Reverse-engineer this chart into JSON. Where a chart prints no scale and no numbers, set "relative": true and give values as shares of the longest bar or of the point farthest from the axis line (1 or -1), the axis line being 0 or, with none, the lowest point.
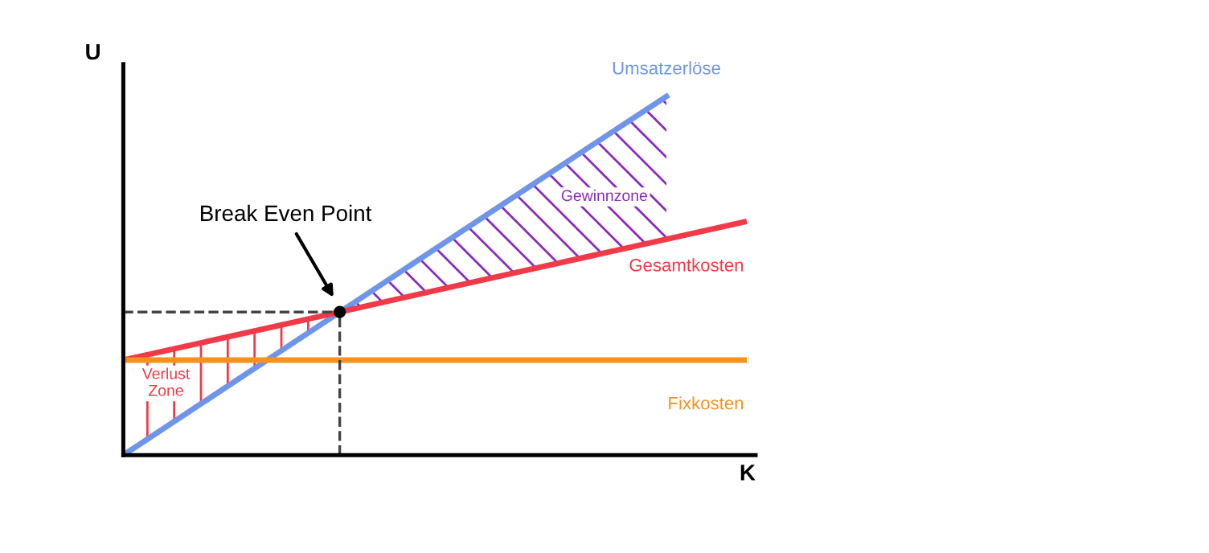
{
  "chart_data": {
    "type": "line",
    "relative": true,
    "xlabel": "K",
    "ylabel": "U",
    "categories": [
      null,
      null,
      null,
      null,
      null,
      null,
      null,
      null,
      null
    ],
    "series": [
      {
        "name": "Umsatzerlöse",
        "color": "#6f95ea",
        "values": [
          0,
          0.143,
          0.286,
          0.429,
          0.572,
          0.715,
          0.858,
          1.0,
          null
        ]
      },
      {
        "name": "Gesamtkosten",
        "color": "#f03a47",
        "values": [
          0.265,
          0.313,
          0.361,
          0.409,
          0.458,
          0.506,
          0.554,
          0.602,
          0.65
        ]
      },
      {
        "name": "Fixkosten",
        "color": "#f5921e",
        "values": [
          0.265,
          0.265,
          0.265,
          0.265,
          0.265,
          0.265,
          0.265,
          0.265,
          0.265
        ]
      }
    ],
    "annotations": [
      "Break Even Point",
      "Gewinnzone",
      "Verlust\nZone"
    ],
    "marker": "none",
    "line_style": "solid"
  }
}
